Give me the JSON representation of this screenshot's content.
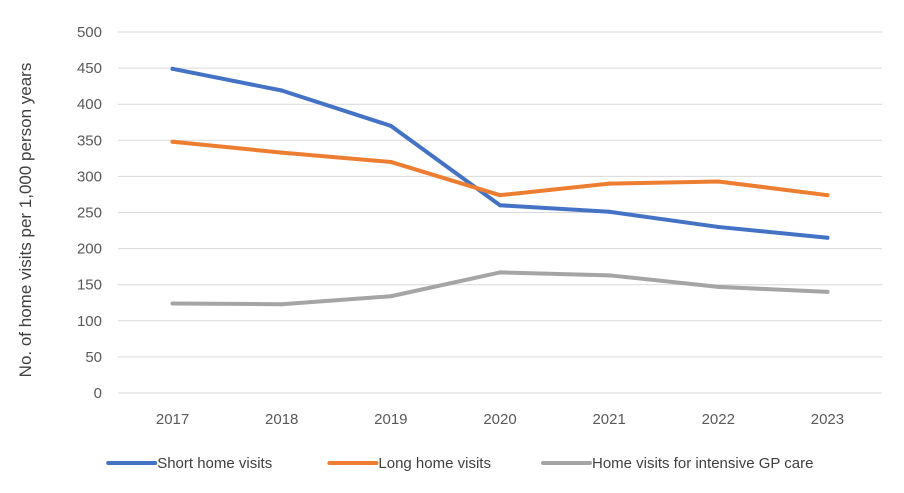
{
  "chart_data": {
    "type": "line",
    "title": "",
    "xlabel": "",
    "ylabel": "No. of home visits per 1,000 person years",
    "categories": [
      "2017",
      "2018",
      "2019",
      "2020",
      "2021",
      "2022",
      "2023"
    ],
    "ylim": [
      0,
      500
    ],
    "yticks": [
      0,
      50,
      100,
      150,
      200,
      250,
      300,
      350,
      400,
      450,
      500
    ],
    "grid": true,
    "legend_position": "bottom",
    "series": [
      {
        "name": "Short home visits",
        "color": "#4472c4",
        "values": [
          449,
          419,
          370,
          260,
          251,
          230,
          215
        ]
      },
      {
        "name": "Long home visits",
        "color": "#ed7d31",
        "values": [
          348,
          333,
          320,
          274,
          290,
          293,
          274
        ]
      },
      {
        "name": "Home visits for intensive GP care",
        "color": "#a5a5a5",
        "values": [
          124,
          123,
          134,
          167,
          163,
          147,
          140
        ]
      }
    ]
  }
}
